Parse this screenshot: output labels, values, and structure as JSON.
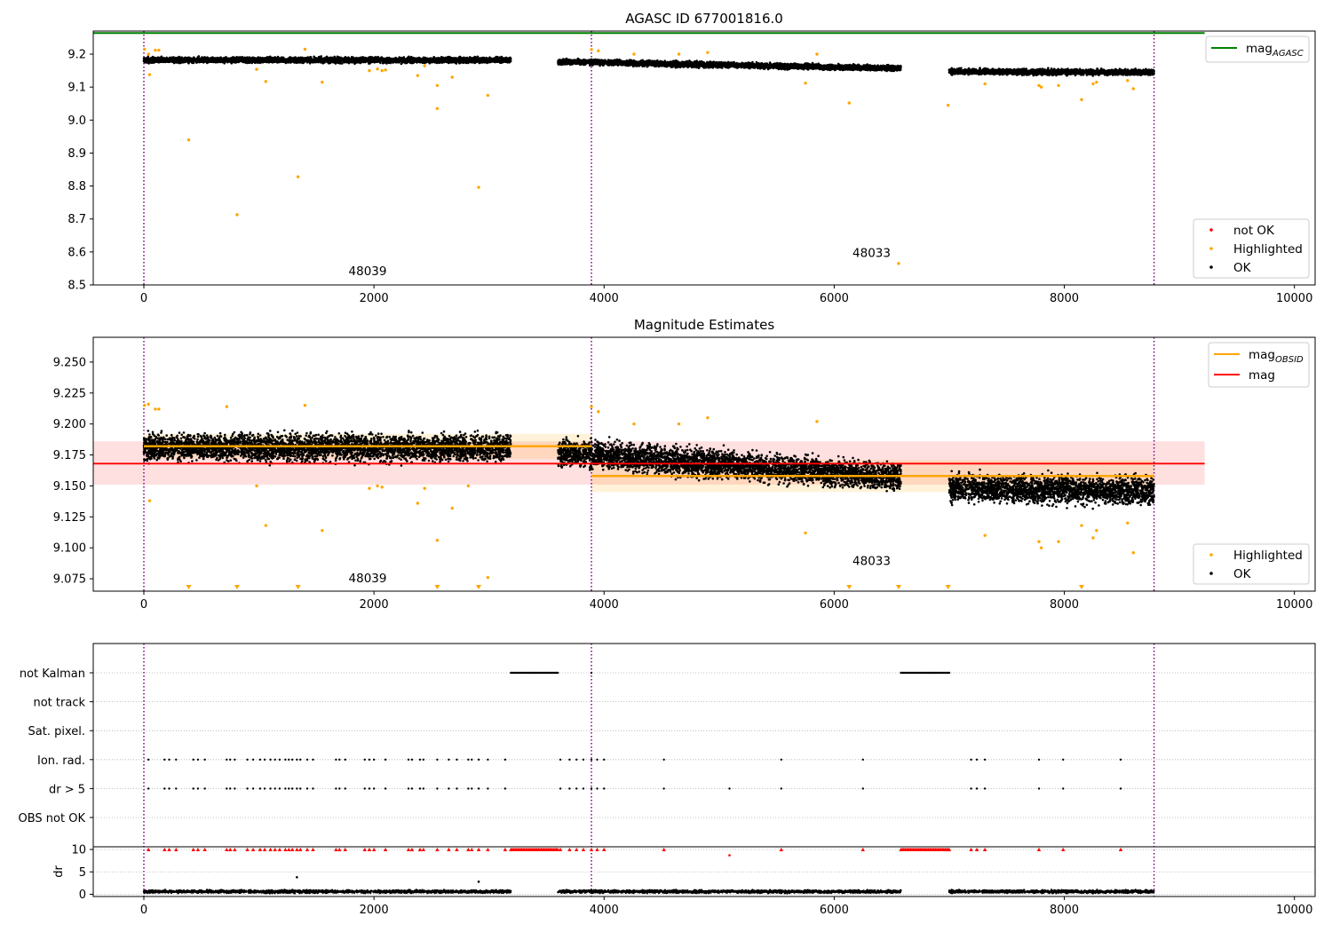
{
  "chart_data": [
    {
      "type": "scatter",
      "title": "AGASC ID 677001816.0",
      "xlim": [
        -440,
        10180
      ],
      "ylim": [
        8.5,
        9.27
      ],
      "xticks": [
        0,
        2000,
        4000,
        6000,
        8000,
        10000
      ],
      "yticks": [
        8.5,
        8.6,
        8.7,
        8.8,
        8.9,
        9.0,
        9.1,
        9.2
      ],
      "vlines": [
        0,
        3890,
        8780
      ],
      "colors": {
        "ok": "#000000",
        "highlighted": "#ffa500",
        "not_ok": "#ff0000",
        "agasc": "#008000",
        "vline": "#800080"
      },
      "mag_agasc": {
        "value": 9.264,
        "x": [
          -440,
          9220
        ]
      },
      "legends": [
        {
          "position": "top-right",
          "items": [
            {
              "label": "mag",
              "sub": "AGASC",
              "kind": "line",
              "color": "#008000"
            }
          ]
        },
        {
          "position": "bottom-right",
          "items": [
            {
              "label": "not OK",
              "kind": "dot",
              "color": "#ff0000"
            },
            {
              "label": "Highlighted",
              "kind": "dot",
              "color": "#ffa500"
            },
            {
              "label": "OK",
              "kind": "dot",
              "color": "#000000"
            }
          ]
        }
      ],
      "annotations": [
        {
          "text": "48039",
          "x": 1945,
          "y": 8.53
        },
        {
          "text": "48033",
          "x": 6325,
          "y": 8.585
        }
      ],
      "series": [
        {
          "name": "OK",
          "kind": "band",
          "segments": [
            {
              "x0": 0,
              "x1": 3190,
              "y0": 9.182,
              "y1": 9.182,
              "spread": 0.012
            },
            {
              "x0": 3600,
              "x1": 6580,
              "y0": 9.177,
              "y1": 9.157,
              "spread": 0.012
            },
            {
              "x0": 7000,
              "x1": 8780,
              "y0": 9.147,
              "y1": 9.145,
              "spread": 0.012
            }
          ]
        },
        {
          "name": "Highlighted",
          "points": [
            [
              5,
              9.215
            ],
            [
              40,
              9.2
            ],
            [
              50,
              9.138
            ],
            [
              100,
              9.212
            ],
            [
              130,
              9.212
            ],
            [
              390,
              8.94
            ],
            [
              810,
              8.713
            ],
            [
              980,
              9.154
            ],
            [
              1060,
              9.117
            ],
            [
              1340,
              8.828
            ],
            [
              1400,
              9.215
            ],
            [
              1550,
              9.115
            ],
            [
              1960,
              9.15
            ],
            [
              2030,
              9.155
            ],
            [
              2070,
              9.15
            ],
            [
              2100,
              9.152
            ],
            [
              2380,
              9.135
            ],
            [
              2440,
              9.165
            ],
            [
              2550,
              9.105
            ],
            [
              2550,
              9.035
            ],
            [
              2680,
              9.13
            ],
            [
              2910,
              8.796
            ],
            [
              2990,
              9.075
            ],
            [
              3890,
              9.214
            ],
            [
              3950,
              9.21
            ],
            [
              4260,
              9.2
            ],
            [
              4650,
              9.2
            ],
            [
              4900,
              9.205
            ],
            [
              5750,
              9.112
            ],
            [
              5850,
              9.2
            ],
            [
              6130,
              9.052
            ],
            [
              6560,
              8.565
            ],
            [
              6990,
              9.045
            ],
            [
              7310,
              9.11
            ],
            [
              7780,
              9.105
            ],
            [
              7800,
              9.1
            ],
            [
              7950,
              9.105
            ],
            [
              8150,
              9.062
            ],
            [
              8250,
              9.11
            ],
            [
              8280,
              9.115
            ],
            [
              8550,
              9.12
            ],
            [
              8600,
              9.095
            ]
          ]
        },
        {
          "name": "not OK",
          "points": []
        }
      ]
    },
    {
      "type": "scatter",
      "title": "Magnitude Estimates",
      "xlim": [
        -440,
        10180
      ],
      "ylim": [
        9.065,
        9.27
      ],
      "xticks": [
        0,
        2000,
        4000,
        6000,
        8000,
        10000
      ],
      "yticks": [
        9.075,
        9.1,
        9.125,
        9.15,
        9.175,
        9.2,
        9.225,
        9.25
      ],
      "ytick_labels": [
        "9.075",
        "9.100",
        "9.125",
        "9.150",
        "9.175",
        "9.200",
        "9.225",
        "9.250"
      ],
      "vlines": [
        0,
        3890,
        8780
      ],
      "mag": {
        "value": 9.168,
        "band": [
          9.151,
          9.186
        ],
        "x": [
          -440,
          9220
        ]
      },
      "mag_obsid": [
        {
          "x0": 0,
          "x1": 3890,
          "value": 9.182,
          "band": [
            9.172,
            9.192
          ]
        },
        {
          "x0": 3890,
          "x1": 8780,
          "value": 9.158,
          "band": [
            9.145,
            9.171
          ]
        }
      ],
      "colors": {
        "ok": "#000000",
        "highlighted": "#ffa500",
        "mag": "#ff0000",
        "mag_obsid": "#ffa500",
        "vline": "#800080"
      },
      "legends": [
        {
          "position": "top-right",
          "items": [
            {
              "label": "mag",
              "sub": "OBSID",
              "kind": "line",
              "color": "#ffa500"
            },
            {
              "label": "mag",
              "kind": "line",
              "color": "#ff0000"
            }
          ]
        },
        {
          "position": "bottom-right",
          "items": [
            {
              "label": "Highlighted",
              "kind": "dot",
              "color": "#ffa500"
            },
            {
              "label": "OK",
              "kind": "dot",
              "color": "#000000"
            }
          ]
        }
      ],
      "annotations": [
        {
          "text": "48039",
          "x": 1945,
          "y": 9.072
        },
        {
          "text": "48033",
          "x": 6325,
          "y": 9.086
        }
      ],
      "below_range_markers_x": [
        390,
        810,
        1340,
        2550,
        2910,
        6130,
        6560,
        6990,
        8150
      ],
      "series": [
        {
          "name": "OK",
          "kind": "band",
          "segments": [
            {
              "x0": 0,
              "x1": 3190,
              "y0": 9.181,
              "y1": 9.181,
              "spread": 0.0155
            },
            {
              "x0": 3600,
              "x1": 6580,
              "y0": 9.177,
              "y1": 9.157,
              "spread": 0.016
            },
            {
              "x0": 7000,
              "x1": 8780,
              "y0": 9.148,
              "y1": 9.146,
              "spread": 0.016
            }
          ]
        },
        {
          "name": "Highlighted",
          "points": [
            [
              5,
              9.215
            ],
            [
              40,
              9.216
            ],
            [
              50,
              9.138
            ],
            [
              100,
              9.212
            ],
            [
              130,
              9.212
            ],
            [
              720,
              9.214
            ],
            [
              980,
              9.15
            ],
            [
              1060,
              9.118
            ],
            [
              1400,
              9.215
            ],
            [
              1550,
              9.114
            ],
            [
              1960,
              9.148
            ],
            [
              2030,
              9.15
            ],
            [
              2070,
              9.149
            ],
            [
              2380,
              9.136
            ],
            [
              2440,
              9.148
            ],
            [
              2550,
              9.106
            ],
            [
              2680,
              9.132
            ],
            [
              2820,
              9.15
            ],
            [
              2990,
              9.076
            ],
            [
              3890,
              9.214
            ],
            [
              3950,
              9.21
            ],
            [
              4260,
              9.2
            ],
            [
              4650,
              9.2
            ],
            [
              4900,
              9.205
            ],
            [
              5750,
              9.112
            ],
            [
              5850,
              9.202
            ],
            [
              7310,
              9.11
            ],
            [
              7780,
              9.105
            ],
            [
              7800,
              9.1
            ],
            [
              7950,
              9.105
            ],
            [
              8150,
              9.118
            ],
            [
              8250,
              9.108
            ],
            [
              8280,
              9.114
            ],
            [
              8550,
              9.12
            ],
            [
              8600,
              9.096
            ]
          ]
        }
      ]
    },
    {
      "type": "scatter",
      "title": "",
      "xlim": [
        -440,
        10180
      ],
      "xticks": [
        0,
        2000,
        4000,
        6000,
        8000,
        10000
      ],
      "vlines": [
        0,
        3890,
        8780
      ],
      "flag_rows": [
        "not Kalman",
        "not track",
        "Sat. pixel.",
        "Ion. rad.",
        "dr > 5",
        "OBS not OK"
      ],
      "flags": {
        "not Kalman": {
          "ranges": [
            [
              3190,
              3600
            ],
            [
              6580,
              7000
            ]
          ],
          "points": [
            3890
          ]
        },
        "not track": {
          "ranges": [],
          "points": []
        },
        "Sat. pixel.": {
          "ranges": [],
          "points": []
        },
        "Ion. rad.": {
          "ranges": [],
          "points": [
            40,
            180,
            220,
            280,
            430,
            470,
            530,
            720,
            750,
            790,
            900,
            950,
            1010,
            1050,
            1100,
            1140,
            1180,
            1230,
            1260,
            1290,
            1330,
            1360,
            1420,
            1470,
            1670,
            1700,
            1750,
            1920,
            1960,
            2000,
            2100,
            2300,
            2330,
            2400,
            2430,
            2550,
            2650,
            2720,
            2820,
            2850,
            2910,
            2990,
            3140,
            3620,
            3700,
            3760,
            3820,
            3890,
            3940,
            4000,
            4520,
            5540,
            6250,
            7190,
            7240,
            7310,
            7780,
            7990,
            8490
          ]
        },
        "dr > 5": {
          "ranges": [],
          "points": [
            40,
            180,
            220,
            280,
            430,
            470,
            530,
            720,
            750,
            790,
            900,
            950,
            1010,
            1050,
            1100,
            1140,
            1180,
            1230,
            1260,
            1290,
            1330,
            1360,
            1420,
            1470,
            1670,
            1700,
            1750,
            1920,
            1960,
            2000,
            2100,
            2300,
            2330,
            2400,
            2430,
            2550,
            2650,
            2720,
            2820,
            2850,
            2910,
            2990,
            3140,
            3620,
            3700,
            3760,
            3820,
            3890,
            3940,
            4000,
            4520,
            5090,
            5540,
            6250,
            7190,
            7240,
            7310,
            7780,
            7990,
            8490
          ]
        },
        "OBS not OK": {
          "ranges": [],
          "points": []
        }
      },
      "dr": {
        "ylabel": "dr",
        "ylim": [
          -0.5,
          10.6
        ],
        "yticks": [
          0,
          5,
          10
        ],
        "ok_segments": [
          [
            0,
            3190
          ],
          [
            3600,
            6580
          ],
          [
            7000,
            8780
          ]
        ],
        "ok_level": 0.6,
        "outliers": [
          [
            1330,
            3.8
          ],
          [
            2910,
            2.8
          ],
          [
            5090,
            8.7
          ]
        ],
        "clipped_x": [
          40,
          180,
          220,
          280,
          430,
          470,
          530,
          720,
          750,
          790,
          900,
          950,
          1010,
          1050,
          1100,
          1140,
          1180,
          1230,
          1260,
          1290,
          1330,
          1360,
          1420,
          1470,
          1670,
          1700,
          1750,
          1920,
          1960,
          2000,
          2100,
          2300,
          2330,
          2400,
          2430,
          2550,
          2650,
          2720,
          2820,
          2850,
          2910,
          2990,
          3140,
          3620,
          3700,
          3760,
          3820,
          3890,
          3940,
          4000,
          4520,
          5540,
          6250,
          7190,
          7240,
          7310,
          7780,
          7990,
          8490
        ],
        "clipped_ranges": [
          [
            3190,
            3600
          ],
          [
            6580,
            7000
          ]
        ],
        "colors": {
          "ok": "#000000",
          "clipped": "#ff0000"
        }
      }
    }
  ]
}
